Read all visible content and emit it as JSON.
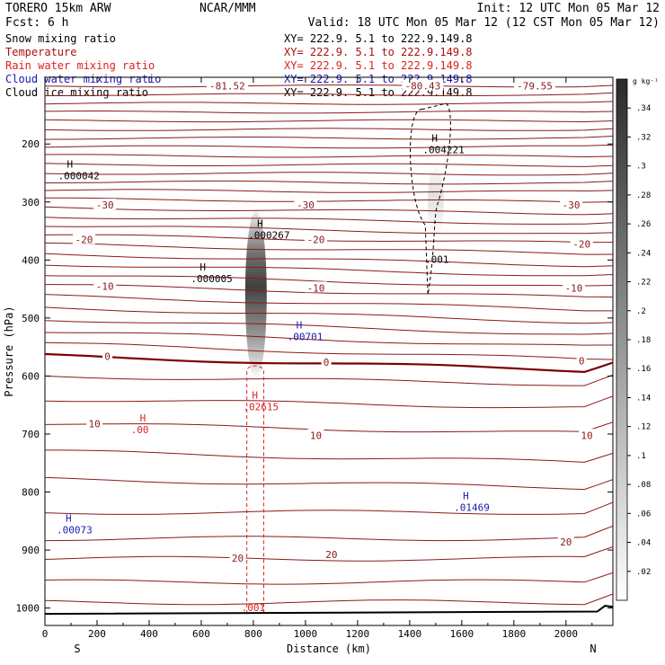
{
  "chart_data": {
    "type": "cross-section",
    "header": {
      "model": "TORERO  15km ARW",
      "center": "NCAR/MMM",
      "init": "Init: 12 UTC Mon 05 Mar 12",
      "fcst": "Fcst:     6 h",
      "valid": "Valid: 18 UTC Mon 05 Mar 12 (12 CST Mon 05 Mar 12)"
    },
    "fields": [
      {
        "name": "Snow mixing ratio",
        "color": "#000000",
        "xy": "XY= 222.9.  5.1 to 222.9.149.8"
      },
      {
        "name": "Temperature",
        "color": "#aa1010",
        "xy": "XY= 222.9.  5.1 to 222.9.149.8"
      },
      {
        "name": "Rain water mixing ratio",
        "color": "#e02020",
        "xy": "XY= 222.9.  5.1 to 222.9.149.8"
      },
      {
        "name": "Cloud water mixing ratio",
        "color": "#1a1ab0",
        "xy": "XY= 222.9.  5.1 to 222.9.149.8"
      },
      {
        "name": "Cloud ice mixing ratio",
        "color": "#000000",
        "xy": "XY= 222.9.  5.1 to 222.9.149.8"
      }
    ],
    "xlabel": "Distance (km)",
    "ylabel": "Pressure (hPa)",
    "xlim": [
      0,
      2180
    ],
    "ylim": [
      1030,
      85
    ],
    "x_ticks": [
      0,
      200,
      400,
      600,
      800,
      1000,
      1200,
      1400,
      1600,
      1800,
      2000
    ],
    "y_ticks": [
      200,
      300,
      400,
      500,
      600,
      700,
      800,
      900,
      1000
    ],
    "endpoints": {
      "left": "S",
      "right": "N"
    },
    "temperature_isotherms": [
      {
        "p_left": 100,
        "p_right": 100
      },
      {
        "p_left": 115,
        "p_right": 115
      },
      {
        "p_left": 130,
        "p_right": 130
      },
      {
        "p_left": 145,
        "p_right": 145
      },
      {
        "p_left": 160,
        "p_right": 160
      },
      {
        "p_left": 175,
        "p_right": 175
      },
      {
        "p_left": 190,
        "p_right": 190
      },
      {
        "p_left": 205,
        "p_right": 205
      },
      {
        "p_left": 220,
        "p_right": 222
      },
      {
        "p_left": 235,
        "p_right": 237
      },
      {
        "p_left": 250,
        "p_right": 252
      },
      {
        "p_left": 265,
        "p_right": 268
      },
      {
        "p_left": 280,
        "p_right": 283
      },
      {
        "p_left": 295,
        "p_right": 300
      },
      {
        "p_left": 310,
        "p_right": 320
      },
      {
        "p_left": 325,
        "p_right": 338
      },
      {
        "p_left": 340,
        "p_right": 357
      },
      {
        "p_left": 357,
        "p_right": 372
      },
      {
        "p_left": 373,
        "p_right": 390
      },
      {
        "p_left": 390,
        "p_right": 410
      },
      {
        "p_left": 407,
        "p_right": 428
      },
      {
        "p_left": 425,
        "p_right": 448
      },
      {
        "p_left": 443,
        "p_right": 466
      },
      {
        "p_left": 462,
        "p_right": 487
      },
      {
        "p_left": 482,
        "p_right": 508
      },
      {
        "p_left": 502,
        "p_right": 530
      },
      {
        "p_left": 523,
        "p_right": 551
      },
      {
        "p_left": 544,
        "p_right": 573
      },
      {
        "p_left": 565,
        "p_right": 592,
        "bold": true
      },
      {
        "p_left": 600,
        "p_right": 615
      },
      {
        "p_left": 640,
        "p_right": 655
      },
      {
        "p_left": 682,
        "p_right": 700
      },
      {
        "p_left": 730,
        "p_right": 750
      },
      {
        "p_left": 778,
        "p_right": 793
      },
      {
        "p_left": 835,
        "p_right": 835
      },
      {
        "p_left": 880,
        "p_right": 880
      },
      {
        "p_left": 915,
        "p_right": 915
      },
      {
        "p_left": 955,
        "p_right": 955
      },
      {
        "p_left": 990,
        "p_right": 990
      }
    ],
    "temperature_labels": [
      {
        "text": "-81.52",
        "x": 700,
        "p": 100
      },
      {
        "text": "-80.43",
        "x": 1450,
        "p": 100
      },
      {
        "text": "-79.55",
        "x": 1880,
        "p": 100
      },
      {
        "text": "-30",
        "x": 230,
        "p": 305
      },
      {
        "text": "-30",
        "x": 1000,
        "p": 305
      },
      {
        "text": "-30",
        "x": 2020,
        "p": 305
      },
      {
        "text": "-20",
        "x": 150,
        "p": 365
      },
      {
        "text": "-20",
        "x": 1040,
        "p": 365
      },
      {
        "text": "-20",
        "x": 2060,
        "p": 372
      },
      {
        "text": "-10",
        "x": 230,
        "p": 445
      },
      {
        "text": "-10",
        "x": 1040,
        "p": 448
      },
      {
        "text": "-10",
        "x": 2030,
        "p": 448
      },
      {
        "text": "0",
        "x": 240,
        "p": 566
      },
      {
        "text": "0",
        "x": 1080,
        "p": 576
      },
      {
        "text": "0",
        "x": 2060,
        "p": 574
      },
      {
        "text": "10",
        "x": 190,
        "p": 682
      },
      {
        "text": "10",
        "x": 1040,
        "p": 702
      },
      {
        "text": "10",
        "x": 2080,
        "p": 702
      },
      {
        "text": "20",
        "x": 740,
        "p": 914
      },
      {
        "text": "20",
        "x": 1100,
        "p": 908
      },
      {
        "text": "20",
        "x": 2000,
        "p": 886
      }
    ],
    "maxima_labels": [
      {
        "mark": "H",
        "value": ".000042",
        "x": 50,
        "p": 250,
        "color": "#000000"
      },
      {
        "mark": "H",
        "value": ".004221",
        "x": 1450,
        "p": 205,
        "color": "#000000"
      },
      {
        "mark": "H",
        "value": ".000267",
        "x": 780,
        "p": 352,
        "color": "#000000"
      },
      {
        "mark": "H",
        "value": ".000005",
        "x": 560,
        "p": 427,
        "color": "#000000"
      },
      {
        "mark": "H",
        "value": ".00701",
        "x": 930,
        "p": 527,
        "color": "#1a1ab0"
      },
      {
        "mark": "H",
        "value": ".02615",
        "x": 760,
        "p": 648,
        "color": "#e02020"
      },
      {
        "mark": "H",
        "value": ".00",
        "x": 330,
        "p": 688,
        "color": "#e02020"
      },
      {
        "mark": "H",
        "value": ".01469",
        "x": 1570,
        "p": 822,
        "color": "#1a1ab0"
      },
      {
        "mark": "H",
        "value": ".00073",
        "x": 45,
        "p": 860,
        "color": "#1a1ab0"
      }
    ],
    "contour_labels": [
      {
        "text": ".001",
        "x": 1505,
        "p": 405,
        "color": "#000000"
      },
      {
        "text": ".001",
        "x": 800,
        "p": 1005,
        "color": "#e02020"
      }
    ],
    "snow_column": {
      "x_center": 810,
      "p_top": 315,
      "p_bottom": 605,
      "max_at_p": 420
    },
    "ice_column": {
      "x_center": 1500,
      "p_top": 240,
      "p_bottom": 360
    },
    "colorbar": {
      "unit": "g kg⁻¹",
      "ticks": [
        ".02",
        ".04",
        ".06",
        ".08",
        ".1",
        ".12",
        ".14",
        ".16",
        ".18",
        ".2",
        ".22",
        ".24",
        ".26",
        ".28",
        ".3",
        ".32",
        ".34"
      ]
    }
  }
}
